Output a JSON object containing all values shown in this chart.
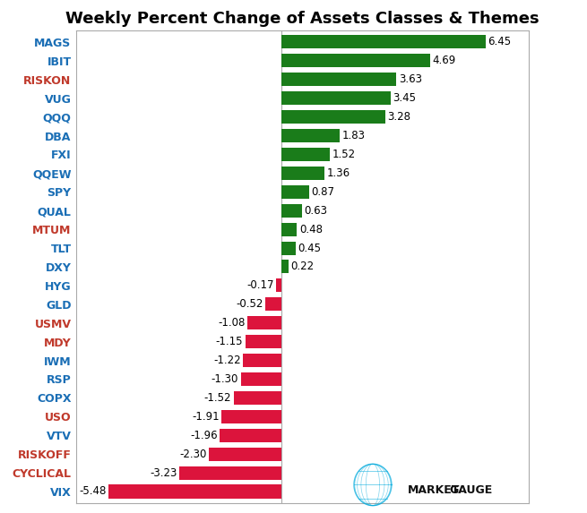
{
  "title": "Weekly Percent Change of Assets Classes & Themes",
  "categories": [
    "MAGS",
    "IBIT",
    "RISKON",
    "VUG",
    "QQQ",
    "DBA",
    "FXI",
    "QQEW",
    "SPY",
    "QUAL",
    "MTUM",
    "TLT",
    "DXY",
    "HYG",
    "GLD",
    "USMV",
    "MDY",
    "IWM",
    "RSP",
    "COPX",
    "USO",
    "VTV",
    "RISKOFF",
    "CYCLICAL",
    "VIX"
  ],
  "values": [
    6.45,
    4.69,
    3.63,
    3.45,
    3.28,
    1.83,
    1.52,
    1.36,
    0.87,
    0.63,
    0.48,
    0.45,
    0.22,
    -0.17,
    -0.52,
    -1.08,
    -1.15,
    -1.22,
    -1.3,
    -1.52,
    -1.91,
    -1.96,
    -2.3,
    -3.23,
    -5.48
  ],
  "label_colors": {
    "MAGS": "#1a6eb5",
    "IBIT": "#1a6eb5",
    "RISKON": "#c0392b",
    "VUG": "#1a6eb5",
    "QQQ": "#1a6eb5",
    "DBA": "#1a6eb5",
    "FXI": "#1a6eb5",
    "QQEW": "#1a6eb5",
    "SPY": "#1a6eb5",
    "QUAL": "#1a6eb5",
    "MTUM": "#c0392b",
    "TLT": "#1a6eb5",
    "DXY": "#1a6eb5",
    "HYG": "#1a6eb5",
    "GLD": "#1a6eb5",
    "USMV": "#c0392b",
    "MDY": "#c0392b",
    "IWM": "#1a6eb5",
    "RSP": "#1a6eb5",
    "COPX": "#1a6eb5",
    "USO": "#c0392b",
    "VTV": "#1a6eb5",
    "RISKOFF": "#c0392b",
    "CYCLICAL": "#c0392b",
    "VIX": "#1a6eb5"
  },
  "bar_color_positive": "#1a7c1a",
  "bar_color_negative": "#dc143c",
  "background_color": "#ffffff",
  "title_fontsize": 13,
  "label_fontsize": 9,
  "value_fontsize": 8.5,
  "xlim": [
    -6.5,
    7.8
  ]
}
